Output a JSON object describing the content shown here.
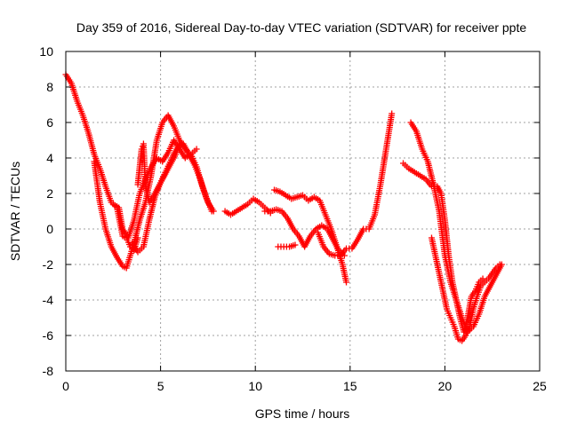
{
  "chart_data": {
    "type": "scatter",
    "title": "Day 359 of 2016, Sidereal Day-to-day VTEC variation (SDTVAR) for receiver ppte",
    "xlabel": "GPS time / hours",
    "ylabel": "SDTVAR / TECUs",
    "xlim": [
      0,
      25
    ],
    "ylim": [
      -8,
      10
    ],
    "xticks": [
      "0",
      "5",
      "10",
      "15",
      "20",
      "25"
    ],
    "yticks": [
      "-8",
      "-6",
      "-4",
      "-2",
      "0",
      "2",
      "4",
      "6",
      "8",
      "10"
    ],
    "grid": true,
    "marker": "plus",
    "colors": {
      "series": "#ff0000"
    },
    "series": [
      {
        "x": [
          0.0,
          0.3,
          0.6,
          0.9,
          1.2,
          1.5,
          1.8,
          2.1,
          2.4,
          2.7,
          3.0,
          3.2,
          3.4,
          3.6,
          3.8
        ],
        "y": [
          8.7,
          8.2,
          7.2,
          6.4,
          5.4,
          4.2,
          3.4,
          2.4,
          1.5,
          1.2,
          -0.4,
          -0.5,
          -1.0,
          -1.2,
          -0.5
        ]
      },
      {
        "x": [
          1.5,
          1.8,
          2.1,
          2.4,
          2.7,
          3.0,
          3.2,
          3.4,
          3.6,
          3.9,
          4.2,
          4.5,
          4.8,
          5.1,
          5.4,
          5.7,
          6.0,
          6.3,
          6.6,
          6.9,
          7.2,
          7.5,
          7.8
        ],
        "y": [
          3.8,
          1.5,
          0.0,
          -1.0,
          -1.6,
          -2.1,
          -2.2,
          -1.5,
          -0.8,
          0.5,
          1.5,
          3.0,
          5.0,
          6.0,
          6.4,
          5.8,
          5.0,
          4.5,
          4.2,
          3.5,
          2.4,
          1.5,
          1.0
        ]
      },
      {
        "x": [
          2.5,
          2.8,
          3.0,
          3.3,
          3.6,
          3.9,
          4.2,
          4.5,
          4.8,
          5.1,
          5.4,
          5.7,
          6.0,
          6.3,
          6.6,
          6.9
        ],
        "y": [
          1.4,
          1.2,
          0.0,
          -0.5,
          0.5,
          2.0,
          2.8,
          3.5,
          4.0,
          3.8,
          4.3,
          5.0,
          4.5,
          4.0,
          4.2,
          4.5
        ]
      },
      {
        "x": [
          3.8,
          3.9,
          4.0,
          4.1,
          4.2,
          4.4,
          4.6,
          4.8,
          5.0,
          5.2,
          5.4,
          5.6,
          5.8,
          6.0
        ],
        "y": [
          2.5,
          3.5,
          4.5,
          4.8,
          2.5,
          1.5,
          1.8,
          2.2,
          2.6,
          3.0,
          3.4,
          3.8,
          4.2,
          4.8
        ]
      },
      {
        "x": [
          3.5,
          3.8,
          4.1,
          4.4,
          4.7,
          5.0,
          5.3,
          5.6,
          5.9,
          6.2,
          6.5,
          6.8,
          7.1,
          7.4,
          7.7
        ],
        "y": [
          -0.8,
          -1.3,
          -1.0,
          0.5,
          1.8,
          2.6,
          3.3,
          4.0,
          4.6,
          4.8,
          4.2,
          3.6,
          2.8,
          1.8,
          1.0
        ]
      },
      {
        "x": [
          8.4,
          8.7,
          9.0,
          9.3,
          9.6,
          9.9,
          10.2,
          10.5,
          10.8
        ],
        "y": [
          1.0,
          0.8,
          1.0,
          1.2,
          1.4,
          1.7,
          1.5,
          1.2,
          0.9
        ]
      },
      {
        "x": [
          11.0,
          11.3,
          11.6,
          11.9,
          12.2,
          12.5,
          12.8,
          13.1,
          13.4,
          13.7,
          14.0,
          14.3,
          14.6,
          14.8
        ],
        "y": [
          2.2,
          2.1,
          1.9,
          1.7,
          1.8,
          1.9,
          1.6,
          1.8,
          1.6,
          0.8,
          0.0,
          -1.0,
          -2.0,
          -3.0
        ]
      },
      {
        "x": [
          10.5,
          10.8,
          11.1,
          11.4,
          11.7,
          12.0,
          12.3,
          12.6,
          12.9,
          13.2,
          13.5,
          13.8,
          14.1,
          14.4,
          14.7
        ],
        "y": [
          1.0,
          1.0,
          1.1,
          1.0,
          0.6,
          0.0,
          -0.4,
          -1.0,
          -0.4,
          0.0,
          0.2,
          0.0,
          -0.6,
          -1.2,
          -1.5
        ]
      },
      {
        "x": [
          11.2,
          11.5,
          11.8,
          12.1
        ],
        "y": [
          -1.0,
          -1.0,
          -1.0,
          -0.9
        ]
      },
      {
        "x": [
          13.3,
          13.6,
          13.9,
          14.2,
          14.5,
          14.8,
          15.1,
          15.4,
          15.7,
          16.0,
          16.3,
          16.6,
          16.9,
          17.2
        ],
        "y": [
          -0.2,
          -1.0,
          -1.4,
          -1.5,
          -1.5,
          -1.1,
          -1.1,
          -0.6,
          0.0,
          0.0,
          0.8,
          2.5,
          4.5,
          6.5
        ]
      },
      {
        "x": [
          18.2,
          18.5,
          18.8,
          19.1,
          19.4,
          19.7,
          20.0,
          20.3,
          20.6,
          20.9,
          21.2,
          21.5,
          21.8,
          22.1,
          22.4,
          22.7,
          23.0
        ],
        "y": [
          6.0,
          5.5,
          4.5,
          3.8,
          2.5,
          1.0,
          -1.5,
          -3.0,
          -4.0,
          -5.0,
          -5.8,
          -5.5,
          -4.8,
          -3.8,
          -3.2,
          -2.6,
          -2.0
        ]
      },
      {
        "x": [
          19.3,
          19.5,
          19.7,
          19.9,
          20.1,
          20.3,
          20.5,
          20.7,
          20.9,
          21.1,
          21.3,
          21.5,
          21.7,
          21.9,
          22.1,
          22.3,
          22.5,
          22.7,
          22.9
        ],
        "y": [
          -0.5,
          -1.5,
          -2.5,
          -3.5,
          -4.5,
          -5.0,
          -5.5,
          -6.2,
          -6.3,
          -6.0,
          -5.5,
          -4.5,
          -3.8,
          -3.2,
          -3.0,
          -2.8,
          -2.5,
          -2.2,
          -2.0
        ]
      },
      {
        "x": [
          17.8,
          18.1,
          18.4,
          18.7,
          19.0,
          19.3,
          19.6,
          19.8,
          20.0,
          20.2,
          20.4,
          20.6,
          20.8,
          21.0,
          21.2,
          21.4,
          21.6,
          21.8,
          22.0
        ],
        "y": [
          3.7,
          3.4,
          3.2,
          3.0,
          2.8,
          2.4,
          2.4,
          2.0,
          0.5,
          -1.5,
          -3.0,
          -4.0,
          -5.0,
          -5.8,
          -5.0,
          -3.8,
          -3.5,
          -3.0,
          -2.8
        ]
      }
    ]
  }
}
